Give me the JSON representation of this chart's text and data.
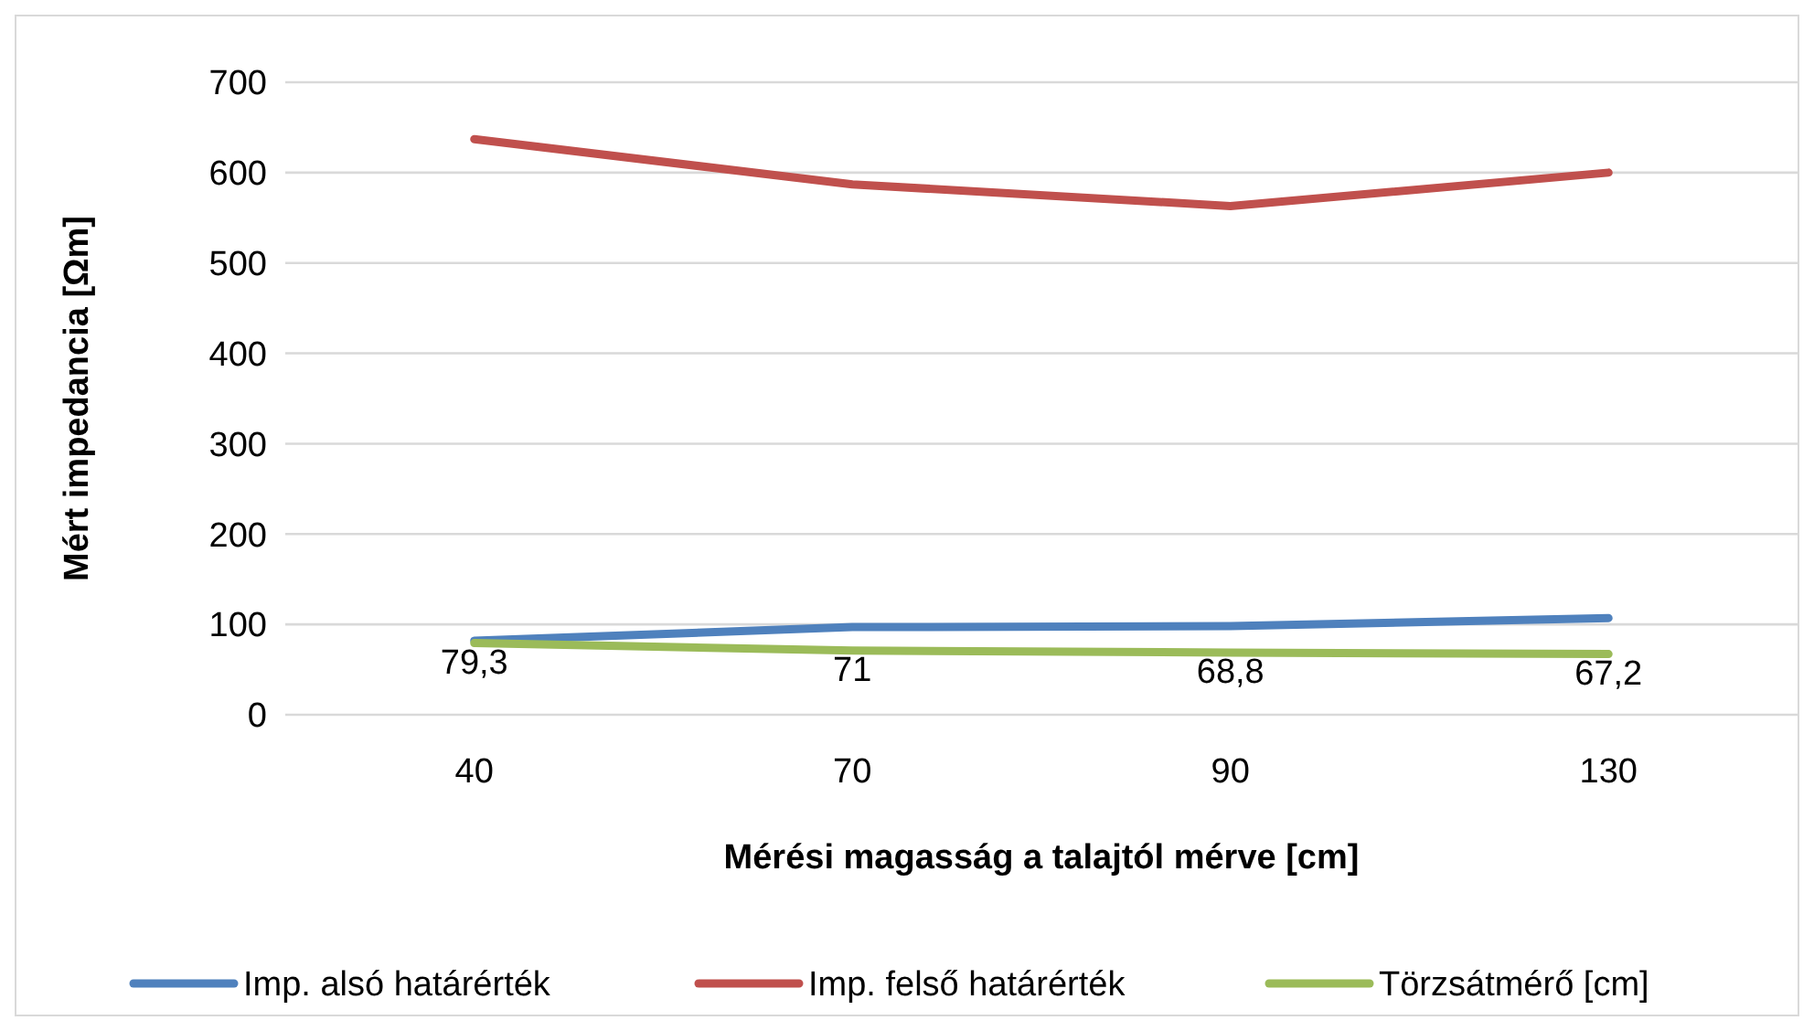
{
  "chart_data": {
    "type": "line",
    "xlabel": "Mérési magasság a talajtól mérve [cm]",
    "ylabel": "Mért impedancia [Ωm]",
    "categories": [
      "40",
      "70",
      "90",
      "130"
    ],
    "series": [
      {
        "name": "Imp. alsó határérték",
        "color": "#4f81bd",
        "values": [
          82,
          97,
          98,
          107
        ]
      },
      {
        "name": "Imp. felső határérték",
        "color": "#c0504d",
        "values": [
          637,
          587,
          563,
          600
        ]
      },
      {
        "name": "Törzsátmérő [cm]",
        "color": "#9bbb59",
        "values": [
          79.3,
          71,
          68.8,
          67.2
        ],
        "value_labels": [
          "79,3",
          "71",
          "68,8",
          "67,2"
        ]
      }
    ],
    "ylim": [
      0,
      700
    ],
    "yticks": [
      0,
      100,
      200,
      300,
      400,
      500,
      600,
      700
    ],
    "grid": "y",
    "legend": "bottom",
    "marker": "none",
    "line_style": "solid"
  }
}
